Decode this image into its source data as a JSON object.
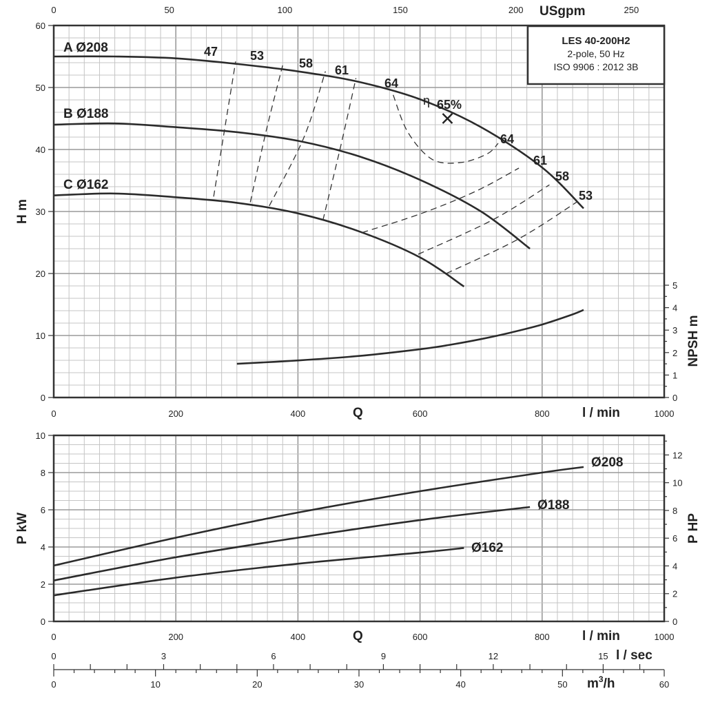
{
  "title_box": {
    "model": "LES 40-200H2",
    "speed": "2-pole, 50 Hz",
    "standard": "ISO 9906 : 2012 3B"
  },
  "axes": {
    "top_x": {
      "label": "USgpm",
      "ticks": [
        0,
        50,
        100,
        150,
        200,
        250
      ]
    },
    "head_y": {
      "label": "H m",
      "ticks": [
        0,
        10,
        20,
        30,
        40,
        50,
        60
      ]
    },
    "npsh_y": {
      "label": "NPSH m",
      "ticks": [
        0,
        1,
        2,
        3,
        4,
        5
      ]
    },
    "q_x": {
      "q_label": "Q",
      "unit_label": "l / min",
      "ticks": [
        0,
        200,
        400,
        600,
        800,
        1000
      ]
    },
    "power_y": {
      "label": "P kW",
      "ticks": [
        0,
        2,
        4,
        6,
        8,
        10
      ]
    },
    "hp_y": {
      "label": "P HP",
      "ticks": [
        0,
        2,
        4,
        6,
        8,
        10,
        12
      ]
    },
    "lsec_x": {
      "label": "l / sec",
      "ticks": [
        0,
        3,
        6,
        9,
        12,
        15
      ]
    },
    "m3h_x": {
      "label": "m3/h",
      "ticks": [
        0,
        10,
        20,
        30,
        40,
        50,
        60
      ]
    }
  },
  "chart_data": [
    {
      "type": "line",
      "title": "",
      "xlabel": "Q (l / min)",
      "ylabel": "H m",
      "xlim": [
        0,
        1000
      ],
      "ylim": [
        0,
        60
      ],
      "grid": true,
      "series": [
        {
          "name": "A Ø208",
          "x": [
            0,
            100,
            200,
            300,
            400,
            500,
            600,
            700,
            800,
            868
          ],
          "y": [
            55,
            55,
            54.7,
            53.8,
            52.6,
            50.9,
            48.1,
            43.6,
            37.1,
            30.5
          ]
        },
        {
          "name": "B Ø188",
          "x": [
            0,
            100,
            200,
            300,
            400,
            500,
            600,
            700,
            780
          ],
          "y": [
            44,
            44.2,
            43.6,
            42.8,
            41.4,
            38.9,
            35.1,
            30.0,
            24.0
          ]
        },
        {
          "name": "C Ø162",
          "x": [
            0,
            100,
            200,
            300,
            400,
            500,
            600,
            672
          ],
          "y": [
            32.6,
            32.9,
            32.3,
            31.4,
            29.7,
            26.8,
            22.6,
            17.9
          ]
        }
      ],
      "efficiency_contours": [
        {
          "label": "47",
          "x": [
            262,
            298
          ],
          "y": [
            32.4,
            54.2
          ]
        },
        {
          "label": "53",
          "x": [
            322,
            348,
            375
          ],
          "y": [
            31.5,
            43.0,
            53.6
          ]
        },
        {
          "label": "58",
          "x": [
            353,
            410,
            445
          ],
          "y": [
            30.9,
            42.0,
            52.6
          ]
        },
        {
          "label": "61",
          "x": [
            441,
            470,
            495
          ],
          "y": [
            28.6,
            40.5,
            51.5
          ]
        },
        {
          "label": "64",
          "x": [
            556,
            580,
            620,
            667,
            710,
            728
          ],
          "y": [
            48.8,
            42.8,
            38.4,
            37.9,
            39.3,
            41.0
          ]
        },
        {
          "label": "64",
          "x": [
            505,
            600,
            690,
            762
          ],
          "y": [
            26.6,
            29.6,
            33.2,
            37.0
          ]
        },
        {
          "label": "61",
          "x": [
            597,
            720,
            812
          ],
          "y": [
            23.1,
            28.7,
            34.3
          ]
        },
        {
          "label": "58",
          "x": [
            643,
            760,
            858
          ],
          "y": [
            20.0,
            25.5,
            31.6
          ]
        },
        {
          "label": "53",
          "x": [],
          "y": []
        }
      ],
      "best_efficiency_point": {
        "label": "65%",
        "symbol": "η",
        "x": 645,
        "y": 45
      }
    },
    {
      "type": "line",
      "title": "",
      "xlabel": "Q (l / min)",
      "ylabel": "NPSH m",
      "xlim": [
        0,
        1000
      ],
      "ylim": [
        0,
        5
      ],
      "series": [
        {
          "name": "",
          "x": [
            300,
            400,
            500,
            600,
            650,
            700,
            750,
            800,
            850,
            868
          ],
          "y": [
            1.5,
            1.65,
            1.85,
            2.15,
            2.35,
            2.6,
            2.9,
            3.25,
            3.7,
            3.9
          ]
        }
      ]
    },
    {
      "type": "line",
      "title": "",
      "xlabel": "Q (l / min)",
      "ylabel": "P kW",
      "xlim": [
        0,
        1000
      ],
      "ylim": [
        0,
        10
      ],
      "grid": true,
      "series": [
        {
          "name": "Ø208",
          "x": [
            0,
            200,
            400,
            600,
            800,
            868
          ],
          "y": [
            3.0,
            4.5,
            5.85,
            7.0,
            8.0,
            8.3
          ]
        },
        {
          "name": "Ø188",
          "x": [
            0,
            200,
            400,
            600,
            780
          ],
          "y": [
            2.2,
            3.45,
            4.5,
            5.45,
            6.15
          ]
        },
        {
          "name": "Ø162",
          "x": [
            0,
            200,
            400,
            600,
            672
          ],
          "y": [
            1.4,
            2.35,
            3.1,
            3.7,
            3.95
          ]
        }
      ]
    }
  ]
}
